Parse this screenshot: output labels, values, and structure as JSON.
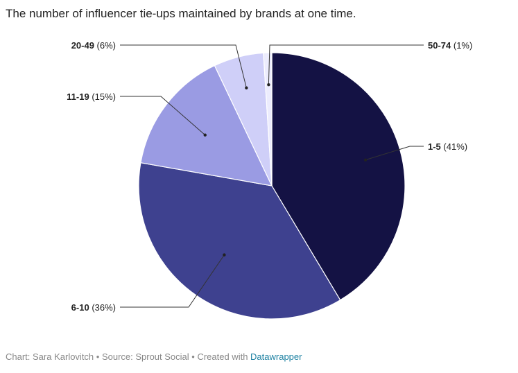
{
  "title": "The number of influencer tie-ups maintained by brands at one time.",
  "chart_data": {
    "type": "pie",
    "slices": [
      {
        "name": "1-5",
        "pct_label": "(41%)",
        "value": 41,
        "color": "#141244"
      },
      {
        "name": "6-10",
        "pct_label": "(36%)",
        "value": 36,
        "color": "#3e418f"
      },
      {
        "name": "11-19",
        "pct_label": "(15%)",
        "value": 15,
        "color": "#9a9be3"
      },
      {
        "name": "20-49",
        "pct_label": "(6%)",
        "value": 6,
        "color": "#cfcff8"
      },
      {
        "name": "50-74",
        "pct_label": "(1%)",
        "value": 1,
        "color": "#ececfd"
      }
    ]
  },
  "footer": {
    "credit": "Chart: Sara Karlovitch • Source: Sprout Social • Created with ",
    "link": "Datawrapper"
  }
}
